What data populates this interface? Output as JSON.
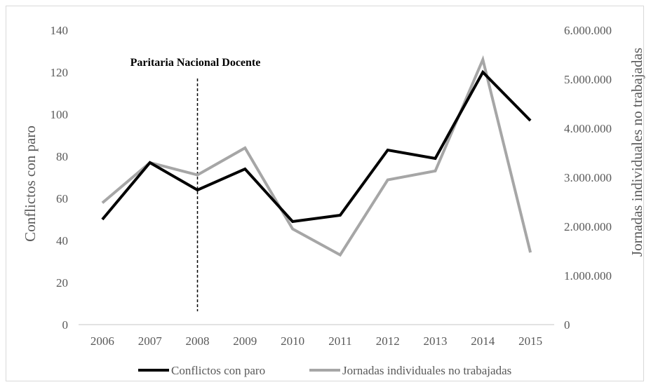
{
  "chart_data": {
    "type": "line",
    "categories": [
      "2006",
      "2007",
      "2008",
      "2009",
      "2010",
      "2011",
      "2012",
      "2013",
      "2014",
      "2015"
    ],
    "series": [
      {
        "name": "Conflictos con paro",
        "axis": "left",
        "color": "#000000",
        "values": [
          50,
          77,
          64,
          74,
          49,
          52,
          83,
          79,
          120,
          97
        ]
      },
      {
        "name": "Jornadas individuales no trabajadas",
        "axis": "right",
        "color": "#a6a6a6",
        "values": [
          2480000,
          3300000,
          3050000,
          3600000,
          1950000,
          1420000,
          2950000,
          3130000,
          5400000,
          1470000
        ]
      }
    ],
    "ylabel": "Conflictos con paro",
    "ylim": [
      0,
      140
    ],
    "yticks": [
      "0",
      "20",
      "40",
      "60",
      "80",
      "100",
      "120",
      "140"
    ],
    "y2label": "Jornadas individuales no trabajadas",
    "y2lim": [
      0,
      6000000
    ],
    "y2ticks": [
      "0",
      "1.000.000",
      "2.000.000",
      "3.000.000",
      "4.000.000",
      "5.000.000",
      "6.000.000"
    ],
    "annotation": {
      "text": "Paritaria Nacional Docente",
      "at_category": "2008"
    },
    "grid": false,
    "legend_position": "bottom"
  }
}
